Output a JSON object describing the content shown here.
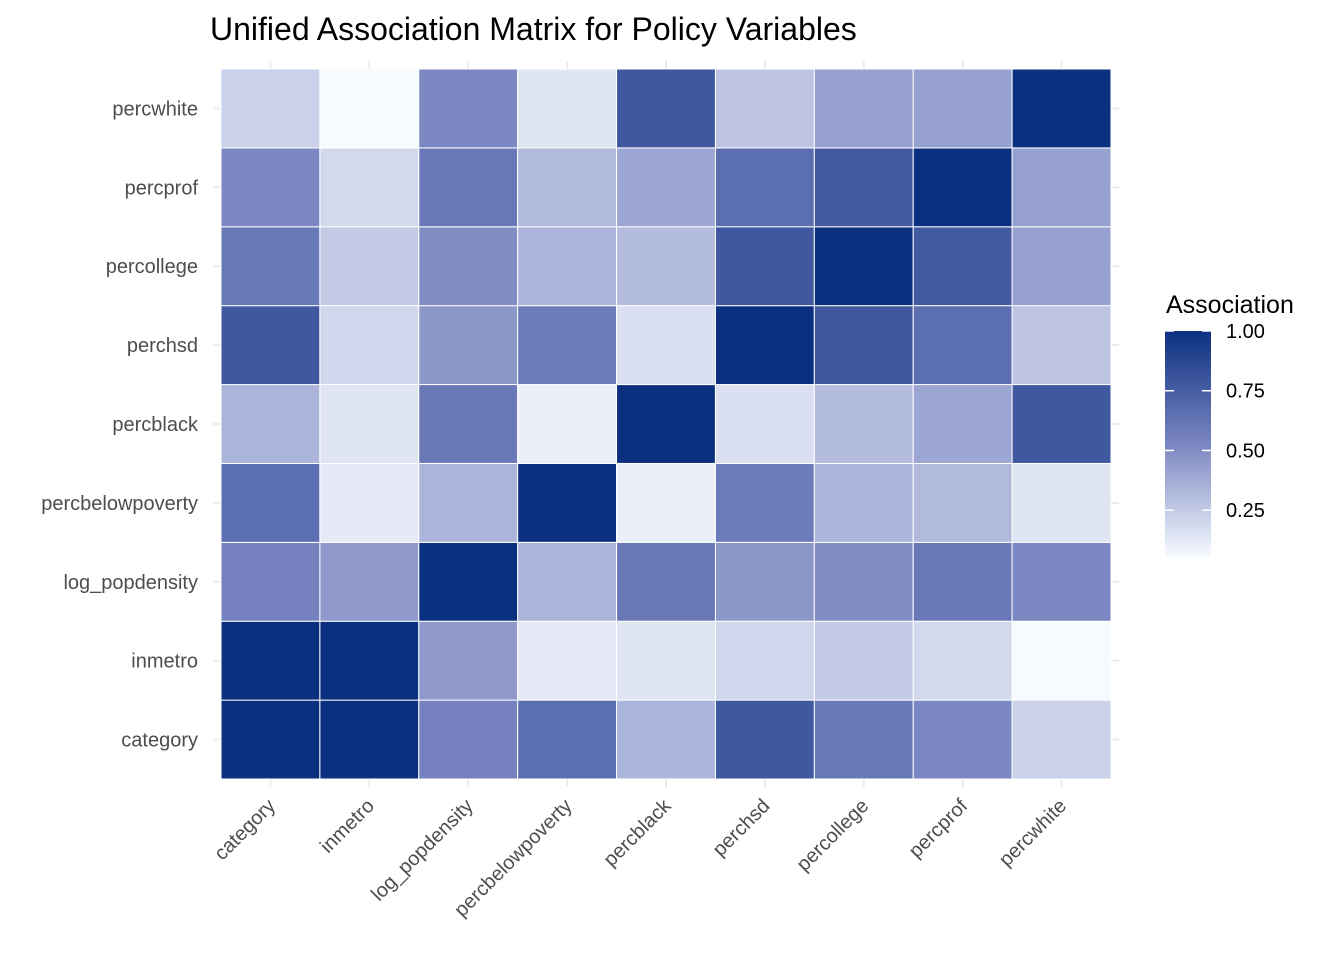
{
  "chart_data": {
    "type": "heatmap",
    "title": "Unified Association Matrix for Policy Variables",
    "xlabel": "",
    "ylabel": "",
    "variables": [
      "category",
      "inmetro",
      "log_popdensity",
      "percbelowpoverty",
      "percblack",
      "perchsd",
      "percollege",
      "percprof",
      "percwhite"
    ],
    "matrix": [
      [
        1.0,
        1.0,
        0.55,
        0.66,
        0.34,
        0.78,
        0.6,
        0.52,
        0.22
      ],
      [
        1.0,
        1.0,
        0.45,
        0.12,
        0.14,
        0.2,
        0.25,
        0.19,
        0.05
      ],
      [
        0.55,
        0.45,
        1.0,
        0.34,
        0.6,
        0.46,
        0.5,
        0.6,
        0.52
      ],
      [
        0.66,
        0.12,
        0.34,
        1.0,
        0.1,
        0.59,
        0.34,
        0.32,
        0.14
      ],
      [
        0.34,
        0.14,
        0.6,
        0.1,
        1.0,
        0.16,
        0.31,
        0.4,
        0.78
      ],
      [
        0.78,
        0.2,
        0.46,
        0.59,
        0.16,
        1.0,
        0.78,
        0.66,
        0.27
      ],
      [
        0.6,
        0.25,
        0.5,
        0.34,
        0.31,
        0.78,
        1.0,
        0.77,
        0.42
      ],
      [
        0.52,
        0.19,
        0.6,
        0.32,
        0.4,
        0.66,
        0.77,
        1.0,
        0.42
      ],
      [
        0.22,
        0.05,
        0.52,
        0.14,
        0.78,
        0.27,
        0.42,
        0.42,
        1.0
      ]
    ],
    "color_scale": {
      "low": "#f7fbff",
      "mid": "#7b87c2",
      "high": "#0c3080",
      "min": 0.05,
      "max": 1.0
    },
    "legend": {
      "title": "Association",
      "ticks": [
        0.25,
        0.5,
        0.75,
        1.0
      ],
      "tick_labels": [
        "0.25",
        "0.50",
        "0.75",
        "1.00"
      ],
      "position": "right"
    },
    "grid": true
  }
}
